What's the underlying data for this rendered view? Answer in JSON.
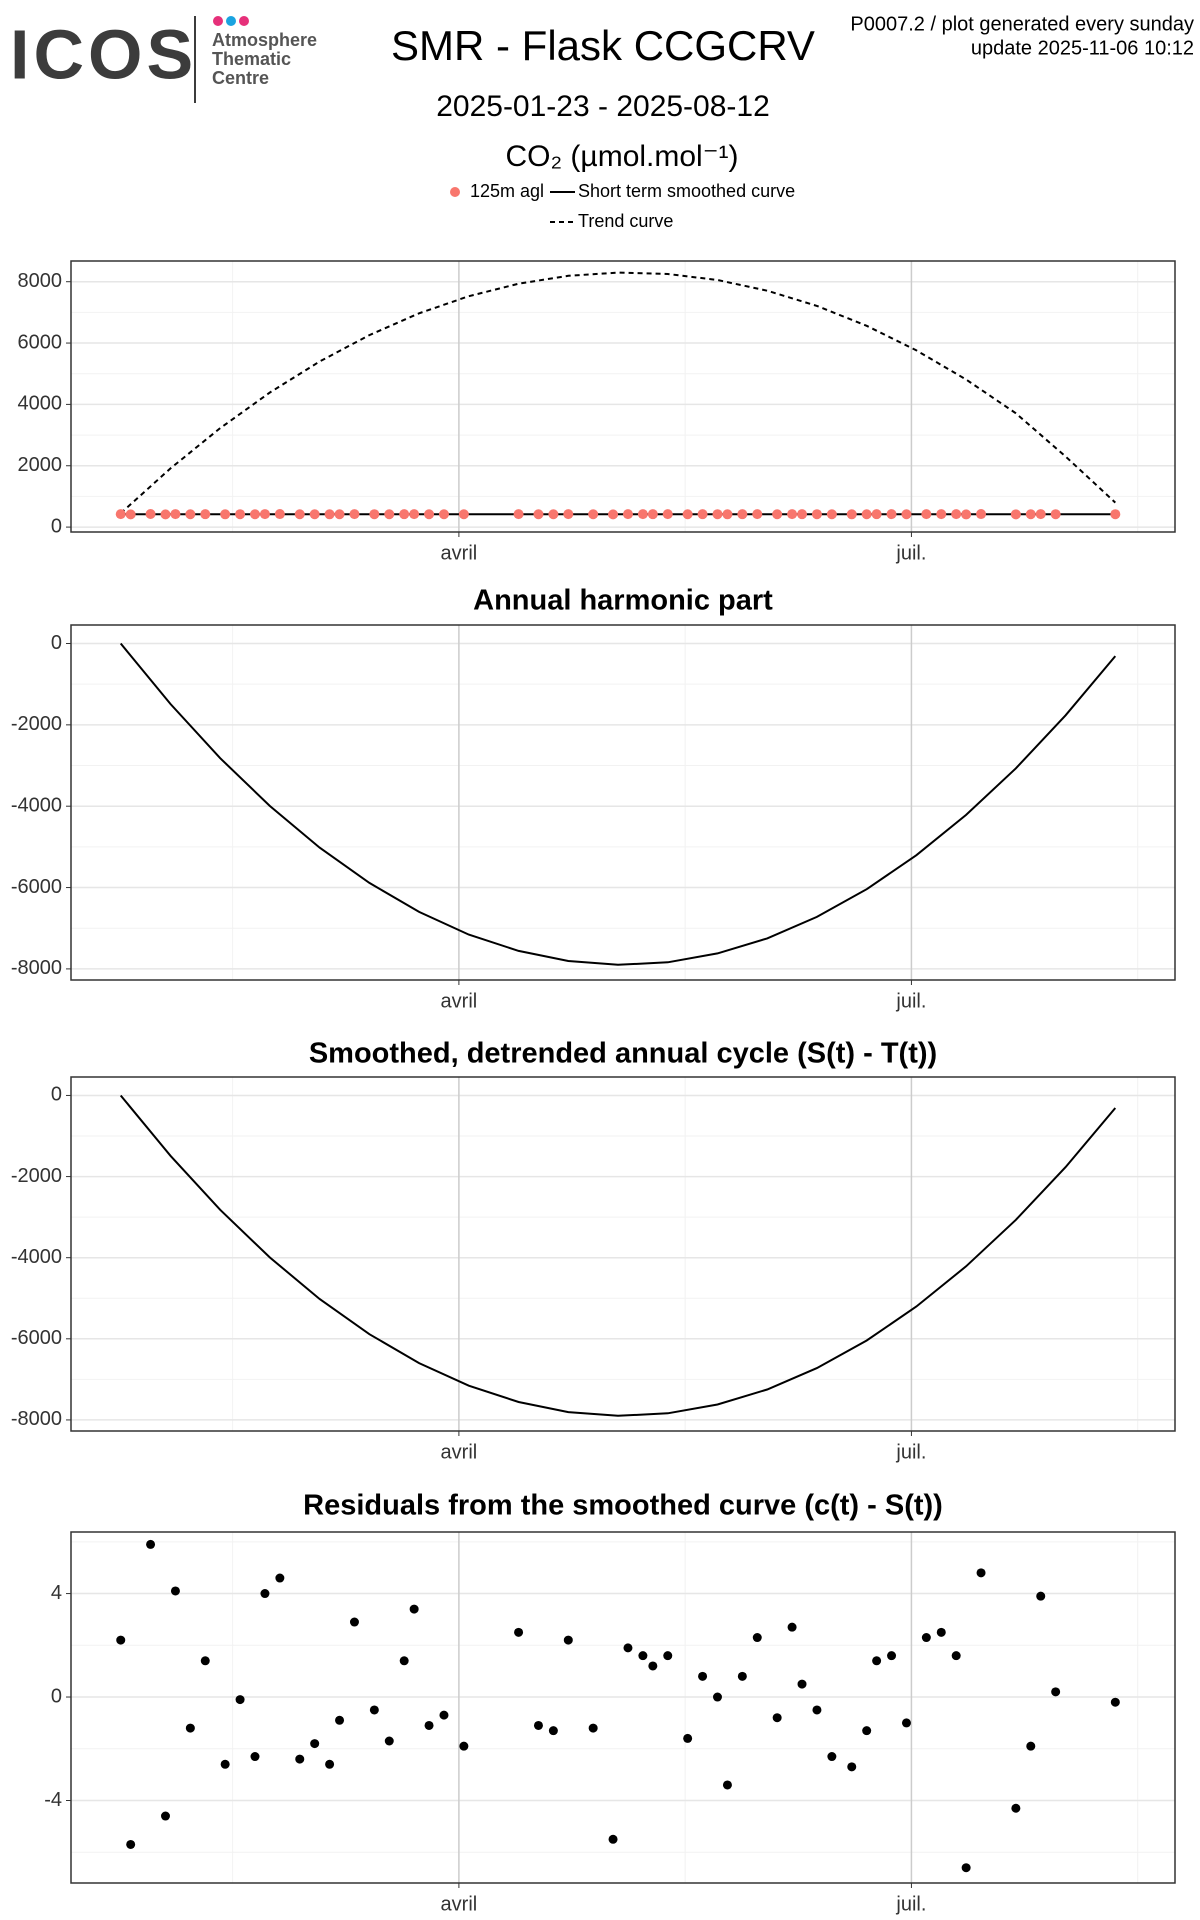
{
  "header": {
    "logo_text": "ICOS",
    "logo_lines": [
      "Atmosphere",
      "Thematic",
      "Centre"
    ],
    "title": "SMR - Flask CCGCRV",
    "subtitle": "2025-01-23 - 2025-08-12",
    "note_lines": [
      "P0007.2 / plot generated every sunday",
      "update  2025-11-06 10:12"
    ]
  },
  "chart_data": [
    {
      "type": "line",
      "title": "CO₂ (µmol.mol⁻¹)",
      "legend": "top",
      "grid": true,
      "xlim": [
        13,
        235
      ],
      "xticks": [
        {
          "value": 91,
          "label": "avril"
        },
        {
          "value": 182,
          "label": "juil."
        }
      ],
      "ylim": [
        -160,
        8675
      ],
      "yticks": [
        0,
        2000,
        4000,
        6000,
        8000
      ],
      "series": [
        {
          "name": "125m agl",
          "color": "#f8766d",
          "style": "points",
          "x": [
            23,
            25,
            29,
            32,
            34,
            37,
            40,
            44,
            47,
            50,
            52,
            55,
            59,
            62,
            65,
            67,
            70,
            74,
            77,
            80,
            82,
            85,
            88,
            92,
            103,
            107,
            110,
            113,
            118,
            122,
            125,
            128,
            130,
            133,
            137,
            140,
            143,
            145,
            148,
            151,
            155,
            158,
            160,
            163,
            166,
            170,
            173,
            175,
            178,
            181,
            185,
            188,
            191,
            193,
            196,
            203,
            206,
            208,
            211,
            223
          ],
          "values": [
            422,
            414,
            426,
            415,
            424,
            419,
            421,
            417,
            420,
            418,
            424,
            425,
            418,
            418,
            417,
            419,
            423,
            420,
            418,
            421,
            423,
            419,
            419,
            418,
            423,
            419,
            419,
            422,
            419,
            415,
            422,
            422,
            421,
            422,
            419,
            421,
            420,
            417,
            421,
            422,
            419,
            423,
            421,
            420,
            418,
            417,
            419,
            421,
            422,
            419,
            422,
            423,
            422,
            413,
            425,
            416,
            418,
            424,
            420,
            420
          ]
        },
        {
          "name": "Short term smoothed curve",
          "color": "#000000",
          "style": "solid",
          "x": [
            23,
            33,
            43,
            53,
            63,
            73,
            83,
            93,
            103,
            113,
            123,
            133,
            143,
            153,
            163,
            173,
            183,
            193,
            203,
            213,
            223
          ],
          "values": [
            420,
            420,
            420,
            420,
            420,
            420,
            420,
            420,
            420,
            420,
            420,
            420,
            420,
            420,
            420,
            420,
            420,
            420,
            420,
            420,
            420
          ]
        },
        {
          "name": "Trend curve",
          "color": "#000000",
          "style": "dashed",
          "x": [
            23,
            33,
            43,
            53,
            63,
            73,
            83,
            93,
            103,
            113,
            123,
            133,
            143,
            153,
            163,
            173,
            183,
            193,
            203,
            213,
            223
          ],
          "values": [
            450,
            1914,
            3227,
            4389,
            5400,
            6260,
            6969,
            7527,
            7935,
            8191,
            8297,
            8252,
            8056,
            7708,
            7210,
            6562,
            5762,
            4811,
            3710,
            2300,
            800
          ]
        }
      ]
    },
    {
      "type": "line",
      "title": "Annual harmonic part",
      "grid": true,
      "xlim": [
        13,
        235
      ],
      "xticks": [
        {
          "value": 91,
          "label": "avril"
        },
        {
          "value": 182,
          "label": "juil."
        }
      ],
      "ylim": [
        -8273,
        455
      ],
      "yticks": [
        -8000,
        -6000,
        -4000,
        -2000,
        0
      ],
      "series": [
        {
          "color": "#000000",
          "style": "solid",
          "x": [
            23,
            33,
            43,
            53,
            63,
            73,
            83,
            93,
            103,
            113,
            123,
            133,
            143,
            153,
            163,
            173,
            183,
            193,
            203,
            213,
            223
          ],
          "values": [
            0,
            -1487,
            -2819,
            -3996,
            -5018,
            -5886,
            -6598,
            -7156,
            -7558,
            -7806,
            -7899,
            -7837,
            -7620,
            -7249,
            -6722,
            -6041,
            -5204,
            -4213,
            -3067,
            -1766,
            -310
          ]
        }
      ]
    },
    {
      "type": "line",
      "title": "Smoothed, detrended annual cycle (S(t) - T(t))",
      "grid": true,
      "xlim": [
        13,
        235
      ],
      "xticks": [
        {
          "value": 91,
          "label": "avril"
        },
        {
          "value": 182,
          "label": "juil."
        }
      ],
      "ylim": [
        -8273,
        455
      ],
      "yticks": [
        -8000,
        -6000,
        -4000,
        -2000,
        0
      ],
      "series": [
        {
          "color": "#000000",
          "style": "solid",
          "x": [
            23,
            33,
            43,
            53,
            63,
            73,
            83,
            93,
            103,
            113,
            123,
            133,
            143,
            153,
            163,
            173,
            183,
            193,
            203,
            213,
            223
          ],
          "values": [
            0,
            -1487,
            -2819,
            -3996,
            -5018,
            -5886,
            -6598,
            -7156,
            -7558,
            -7806,
            -7899,
            -7837,
            -7620,
            -7249,
            -6722,
            -6041,
            -5204,
            -4213,
            -3067,
            -1766,
            -310
          ]
        }
      ]
    },
    {
      "type": "scatter",
      "title": "Residuals from the smoothed curve (c(t) - S(t))",
      "grid": true,
      "xlim": [
        13,
        235
      ],
      "xticks": [
        {
          "value": 91,
          "label": "avril"
        },
        {
          "value": 182,
          "label": "juil."
        }
      ],
      "ylim": [
        -7.19,
        6.38
      ],
      "yticks": [
        -4,
        0,
        4
      ],
      "series": [
        {
          "color": "#000000",
          "style": "points",
          "x": [
            23,
            25,
            29,
            32,
            34,
            37,
            40,
            44,
            47,
            50,
            52,
            55,
            59,
            62,
            65,
            67,
            70,
            74,
            77,
            80,
            82,
            85,
            88,
            92,
            103,
            107,
            110,
            113,
            118,
            122,
            125,
            128,
            130,
            133,
            137,
            140,
            143,
            145,
            148,
            151,
            155,
            158,
            160,
            163,
            166,
            170,
            173,
            175,
            178,
            181,
            185,
            188,
            191,
            193,
            196,
            203,
            206,
            208,
            211,
            223
          ],
          "values": [
            2.2,
            -5.7,
            5.9,
            -4.6,
            4.1,
            -1.2,
            1.4,
            -2.6,
            -0.1,
            -2.3,
            4.0,
            4.6,
            -2.4,
            -1.8,
            -2.6,
            -0.9,
            2.9,
            -0.5,
            -1.7,
            1.4,
            3.4,
            -1.1,
            -0.7,
            -1.9,
            2.5,
            -1.1,
            -1.3,
            2.2,
            -1.2,
            -5.5,
            1.9,
            1.6,
            1.2,
            1.6,
            -1.6,
            0.8,
            0.0,
            -3.4,
            0.8,
            2.3,
            -0.8,
            2.7,
            0.5,
            -0.5,
            -2.3,
            -2.7,
            -1.3,
            1.4,
            1.6,
            -1.0,
            2.3,
            2.5,
            1.6,
            -6.6,
            4.8,
            -4.3,
            -1.9,
            3.9,
            0.2,
            -0.2
          ]
        }
      ]
    }
  ]
}
